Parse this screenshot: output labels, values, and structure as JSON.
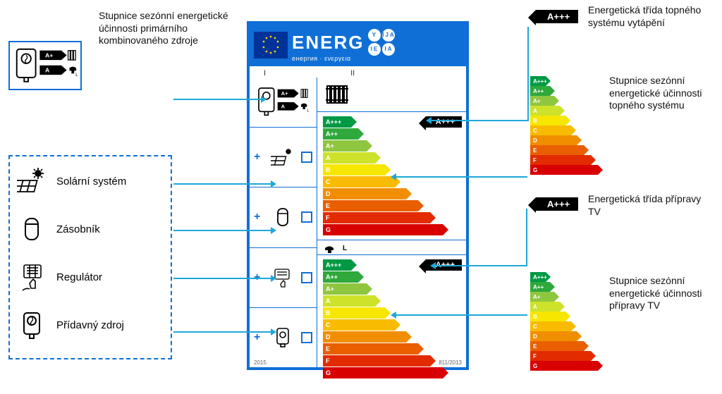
{
  "header": {
    "title": "ENERG",
    "subtitle": "енергия · ενεργεια",
    "lang_bubbles": [
      "Y",
      "IJA",
      "IE",
      "IA"
    ],
    "eu_bg": "#003399",
    "eu_star": "#FFCC00",
    "header_bg": "#0f6fd6",
    "roman": [
      "I",
      "II"
    ]
  },
  "annotations": {
    "src_scale": "Stupnice sezónní energetické účinnosti primárního kombinovaného zdroje",
    "solar": "Solární systém",
    "tank": "Zásobník",
    "controller": "Regulátor",
    "aux": "Přídavný zdroj",
    "heating_class": "Energetická třída topného systému vytápění",
    "heating_scale": "Stupnice sezónní energetické účinnosti topného systému",
    "dhw_class": "Energetická třída přípravy TV",
    "dhw_scale": "Stupnice sezónní energetické účinnosti přípravy TV"
  },
  "scale": {
    "classes": [
      "A+++",
      "A++",
      "A+",
      "A",
      "B",
      "C",
      "D",
      "E",
      "F",
      "G"
    ],
    "colors": [
      "#009944",
      "#2fa83c",
      "#8fc63f",
      "#cde22a",
      "#f7e600",
      "#f9bb00",
      "#f18e00",
      "#e95f00",
      "#e32b00",
      "#d80000"
    ],
    "widths_main": [
      40,
      50,
      62,
      74,
      88,
      102,
      118,
      135,
      152,
      170
    ],
    "widths_small": [
      22,
      28,
      34,
      42,
      50,
      58,
      66,
      76,
      86,
      96
    ]
  },
  "label": {
    "primary_ratings": [
      "A+",
      "A"
    ],
    "heating_class_value": "A+++",
    "dhw_class_value": "A+++",
    "tap_label": "L",
    "year": "2015",
    "regulation": "811/2013"
  },
  "colors": {
    "brand": "#0f6fd6",
    "leader": "#1fa7d8",
    "black": "#000000",
    "text": "#111111"
  }
}
